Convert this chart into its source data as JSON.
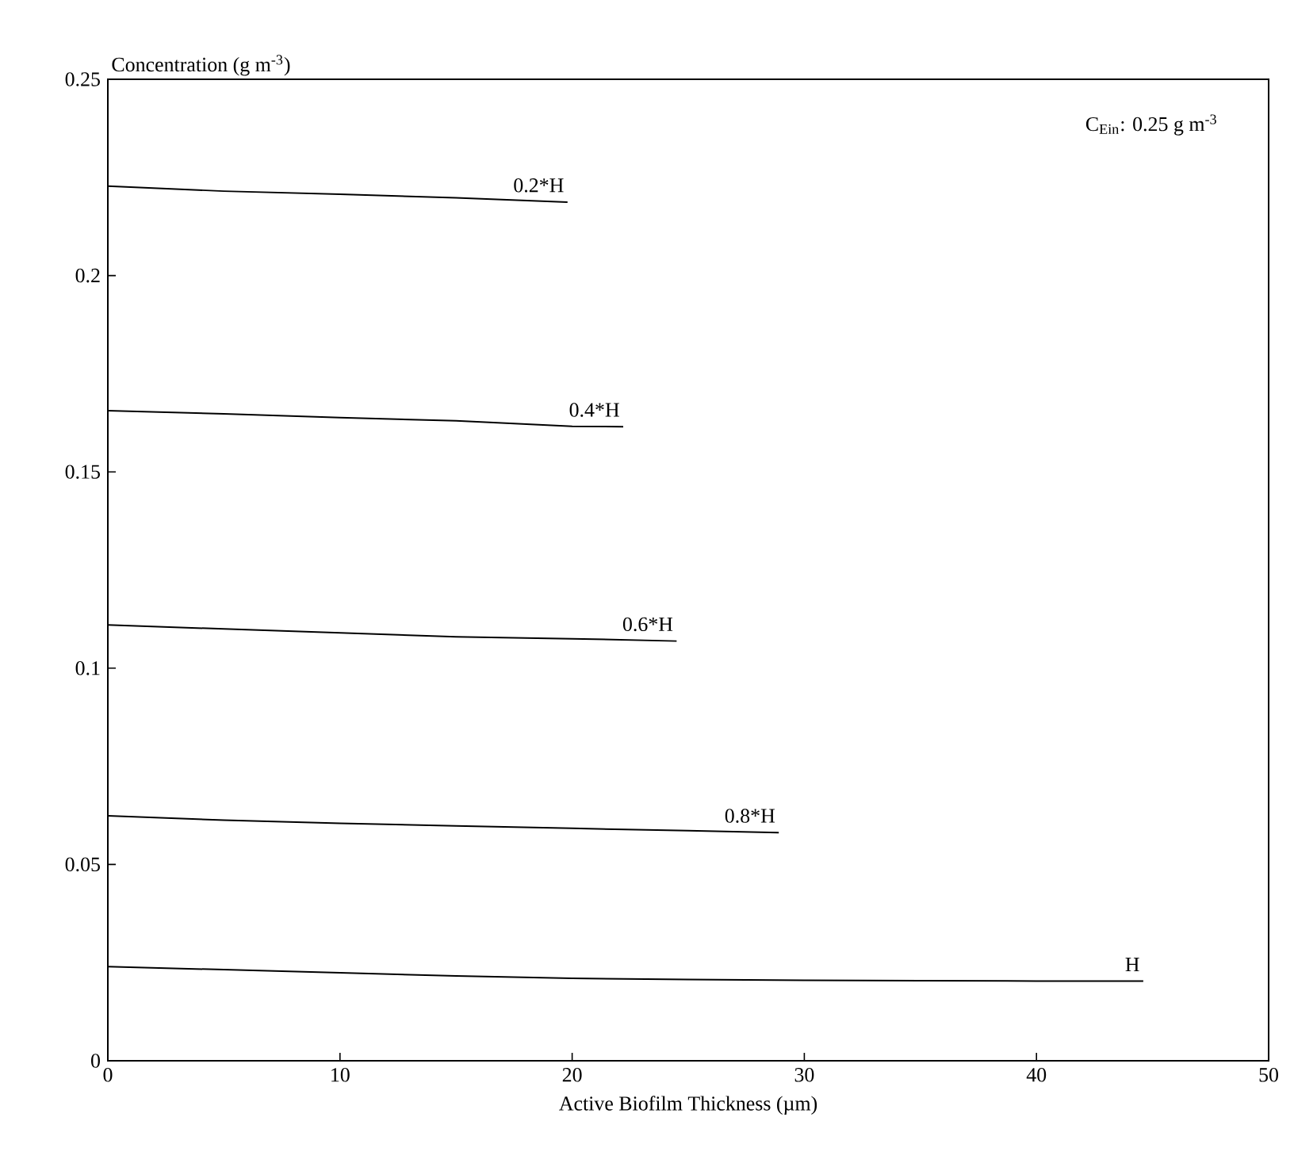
{
  "chart_data": {
    "type": "line",
    "xlabel": "Active Biofilm Thickness (µm)",
    "ylabel": "Concentration (g m$^{-3}$)",
    "xlim": [
      0,
      50
    ],
    "ylim": [
      0,
      0.25
    ],
    "xticks": [
      0,
      10,
      20,
      30,
      40,
      50
    ],
    "yticks": [
      0,
      0.05,
      0.1,
      0.15,
      0.2,
      0.25
    ],
    "annotations": [
      "C$_{Ein}$: 0.25 g m$^{-3}$"
    ],
    "series": [
      {
        "name": "0.2*H",
        "color": "#000000",
        "x": [
          0,
          5,
          10,
          15,
          19.8
        ],
        "values": [
          0.2228,
          0.2215,
          0.2207,
          0.2198,
          0.2187
        ]
      },
      {
        "name": "0.4*H",
        "color": "#000000",
        "x": [
          0,
          5,
          10,
          15,
          20,
          22.2
        ],
        "values": [
          0.1656,
          0.1648,
          0.1638,
          0.163,
          0.1616,
          0.1615
        ]
      },
      {
        "name": "0.6*H",
        "color": "#000000",
        "x": [
          0,
          5,
          10,
          15,
          20,
          24.5
        ],
        "values": [
          0.111,
          0.11,
          0.109,
          0.108,
          0.1075,
          0.1069
        ]
      },
      {
        "name": "0.8*H",
        "color": "#000000",
        "x": [
          0,
          5,
          10,
          15,
          20,
          25,
          28.9
        ],
        "values": [
          0.0624,
          0.0613,
          0.0605,
          0.0598,
          0.0592,
          0.0586,
          0.0581
        ]
      },
      {
        "name": "H",
        "color": "#000000",
        "x": [
          0,
          5,
          10,
          15,
          20,
          25,
          30,
          35,
          40,
          44.6
        ],
        "values": [
          0.024,
          0.0232,
          0.0224,
          0.0216,
          0.021,
          0.0207,
          0.0205,
          0.0204,
          0.0203,
          0.0203
        ]
      }
    ]
  }
}
